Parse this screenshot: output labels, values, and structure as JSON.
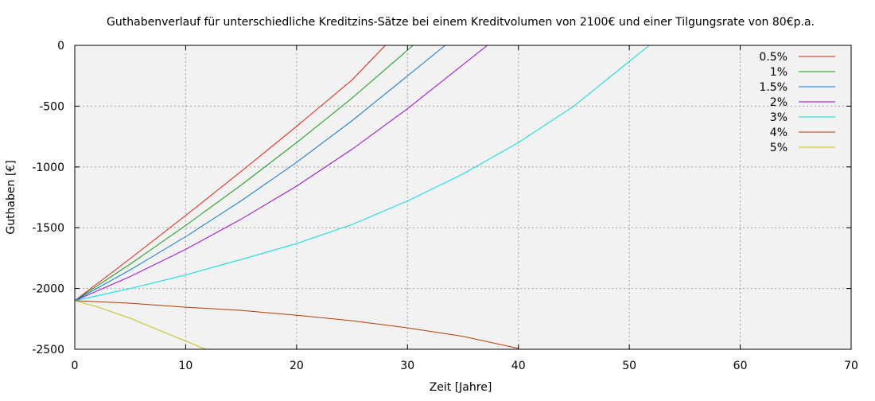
{
  "chart_data": {
    "type": "line",
    "title": "Guthabenverlauf für unterschiedliche Kreditzins-Sätze bei einem Kreditvolumen von 2100€ und einer Tilgungsrate von 80€p.a.",
    "xlabel": "Zeit [Jahre]",
    "ylabel": "Guthaben [€]",
    "xlim": [
      0,
      70
    ],
    "ylim": [
      -2500,
      0
    ],
    "xticks": [
      0,
      10,
      20,
      30,
      40,
      50,
      60,
      70
    ],
    "yticks": [
      0,
      -500,
      -1000,
      -1500,
      -2000,
      -2500
    ],
    "xtick_labels": [
      "0",
      "10",
      "20",
      "30",
      "40",
      "50",
      "60",
      "70"
    ],
    "ytick_labels": [
      "0",
      "-500",
      "-1000",
      "-1500",
      "-2000",
      "-2500"
    ],
    "grid": true,
    "legend_position": "top-right",
    "series": [
      {
        "name": "0.5%",
        "color": "#e51e10",
        "x": [
          0,
          5,
          10,
          15,
          20,
          25,
          28
        ],
        "y": [
          -2100,
          -1754,
          -1400,
          -1037,
          -666,
          -285,
          0
        ]
      },
      {
        "name": "1%",
        "color": "#109e10",
        "x": [
          0,
          5,
          10,
          15,
          20,
          25,
          30.5
        ],
        "y": [
          -2100,
          -1799,
          -1482,
          -1150,
          -800,
          -434,
          0
        ]
      },
      {
        "name": "1.5%",
        "color": "#0a78d2",
        "x": [
          0,
          5,
          10,
          15,
          20,
          25,
          30,
          33.4
        ],
        "y": [
          -2100,
          -1847,
          -1574,
          -1279,
          -962,
          -620,
          -251,
          0
        ]
      },
      {
        "name": "2%",
        "color": "#a000dc",
        "x": [
          0,
          5,
          10,
          15,
          20,
          25,
          30,
          37.2
        ],
        "y": [
          -2100,
          -1902,
          -1678,
          -1430,
          -1158,
          -855,
          -521,
          0
        ]
      },
      {
        "name": "3%",
        "color": "#00dcdc",
        "x": [
          0,
          5,
          10,
          15,
          20,
          25,
          30,
          35,
          40,
          45,
          51.8
        ],
        "y": [
          -2100,
          -2000,
          -1888,
          -1761,
          -1630,
          -1474,
          -1280,
          -1058,
          -800,
          -500,
          0
        ]
      },
      {
        "name": "4%",
        "color": "#b43c00",
        "x": [
          0,
          5,
          10,
          15,
          20,
          25,
          30,
          35,
          40
        ],
        "y": [
          -2100,
          -2121,
          -2154,
          -2180,
          -2220,
          -2265,
          -2324,
          -2393,
          -2493
        ]
      },
      {
        "name": "5%",
        "color": "#c8be1e",
        "x": [
          0,
          2,
          5,
          8,
          10,
          11.8
        ],
        "y": [
          -2100,
          -2150,
          -2245,
          -2358,
          -2432,
          -2500
        ]
      }
    ]
  }
}
